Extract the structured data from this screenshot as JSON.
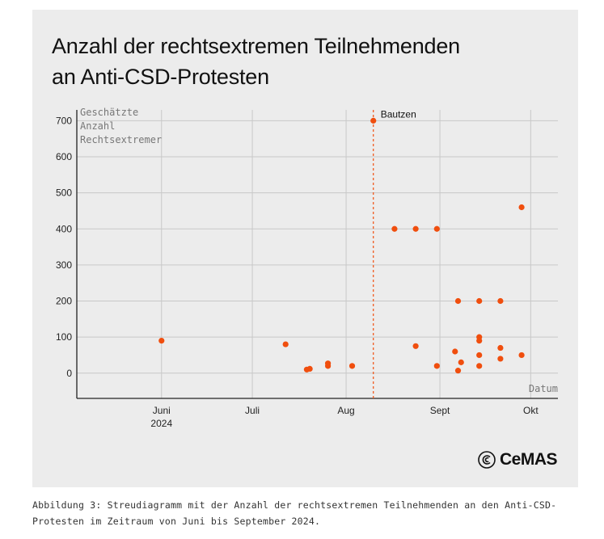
{
  "title": {
    "line1": "Anzahl der rechtsextremen Teilnehmenden",
    "line2": "an Anti-CSD-Protesten"
  },
  "logo": {
    "text": "CeMAS",
    "icon": "cemas-logo-icon"
  },
  "caption": {
    "line1": "Abbildung 3: Streudiagramm mit der Anzahl der rechtsextremen Teilnehmenden an den Anti-CSD-",
    "line2": "Protesten im Zeitraum von Juni bis September 2024."
  },
  "colors": {
    "card_bg": "#ececec",
    "point": "#f04e0e",
    "grid": "#c8c8c8",
    "axis": "#222222",
    "muted_text": "#777777"
  },
  "chart_data": {
    "type": "scatter",
    "ylabel": [
      "Geschätzte",
      "Anzahl",
      "Rechtsextremer"
    ],
    "xlabel": "Datum",
    "ylim": [
      -70,
      730
    ],
    "y_ticks": [
      0,
      100,
      200,
      300,
      400,
      500,
      600,
      700
    ],
    "x_ticks": [
      {
        "date": "2024-06-01",
        "label": "Juni",
        "sublabel": "2024"
      },
      {
        "date": "2024-07-01",
        "label": "Juli"
      },
      {
        "date": "2024-08-01",
        "label": "Aug"
      },
      {
        "date": "2024-09-01",
        "label": "Sept"
      },
      {
        "date": "2024-10-01",
        "label": "Okt"
      }
    ],
    "xlim": [
      "2024-05-04",
      "2024-10-10"
    ],
    "grid": true,
    "reference_line": {
      "date": "2024-08-10",
      "style": "dashed"
    },
    "annotations": [
      {
        "date": "2024-08-10",
        "y": 700,
        "text": "Bautzen"
      }
    ],
    "points": [
      {
        "x": "2024-06-01",
        "y": 90
      },
      {
        "x": "2024-07-12",
        "y": 80
      },
      {
        "x": "2024-07-19",
        "y": 10
      },
      {
        "x": "2024-07-20",
        "y": 12
      },
      {
        "x": "2024-07-26",
        "y": 20
      },
      {
        "x": "2024-07-26",
        "y": 27
      },
      {
        "x": "2024-08-03",
        "y": 20
      },
      {
        "x": "2024-08-10",
        "y": 700
      },
      {
        "x": "2024-08-17",
        "y": 400
      },
      {
        "x": "2024-08-24",
        "y": 400
      },
      {
        "x": "2024-08-24",
        "y": 75
      },
      {
        "x": "2024-08-31",
        "y": 400
      },
      {
        "x": "2024-08-31",
        "y": 20
      },
      {
        "x": "2024-09-06",
        "y": 60
      },
      {
        "x": "2024-09-07",
        "y": 200
      },
      {
        "x": "2024-09-07",
        "y": 7
      },
      {
        "x": "2024-09-08",
        "y": 30
      },
      {
        "x": "2024-09-14",
        "y": 200
      },
      {
        "x": "2024-09-14",
        "y": 100
      },
      {
        "x": "2024-09-14",
        "y": 90
      },
      {
        "x": "2024-09-14",
        "y": 50
      },
      {
        "x": "2024-09-14",
        "y": 20
      },
      {
        "x": "2024-09-21",
        "y": 200
      },
      {
        "x": "2024-09-21",
        "y": 70
      },
      {
        "x": "2024-09-21",
        "y": 40
      },
      {
        "x": "2024-09-28",
        "y": 460
      },
      {
        "x": "2024-09-28",
        "y": 50
      }
    ]
  }
}
